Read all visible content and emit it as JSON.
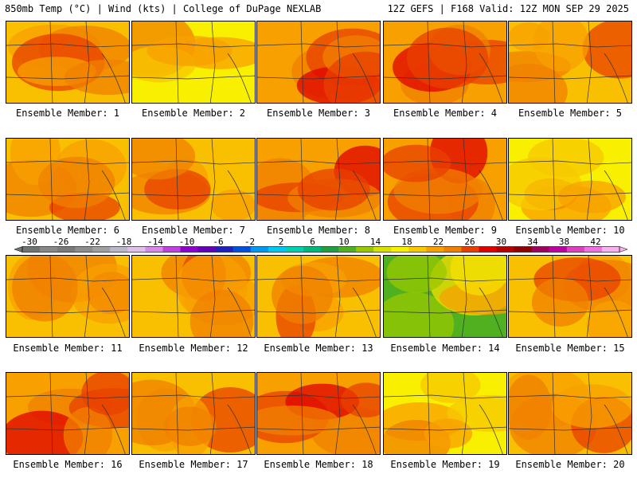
{
  "header": {
    "left": "850mb Temp (°C) | Wind (kts) | College of DuPage NEXLAB",
    "right": "12Z GEFS | F168 Valid: 12Z MON SEP 29 2025"
  },
  "colorbar": {
    "ticks": [
      "-30",
      "-26",
      "-22",
      "-18",
      "-14",
      "-10",
      "-6",
      "-2",
      "2",
      "6",
      "10",
      "14",
      "18",
      "22",
      "26",
      "30",
      "34",
      "38",
      "42"
    ],
    "colors": [
      "#6e7470",
      "#888888",
      "#7a7a7a",
      "#8c8c8c",
      "#a0a0a0",
      "#b8b8c8",
      "#e0c0e8",
      "#d888e8",
      "#c040e0",
      "#9000d0",
      "#6000b8",
      "#2020c0",
      "#0050e0",
      "#0098f0",
      "#00c8f0",
      "#00d0b0",
      "#00b878",
      "#20a040",
      "#50b020",
      "#98c800",
      "#d8e000",
      "#f8f000",
      "#f8c800",
      "#f8a000",
      "#f08000",
      "#e84000",
      "#e00000",
      "#b80000",
      "#900000",
      "#a00060",
      "#c000a0",
      "#e040c0",
      "#f070e0",
      "#f8b0f0"
    ]
  },
  "panels": [
    {
      "label": "Ensemble Member: 1",
      "variant": "warm"
    },
    {
      "label": "Ensemble Member: 2",
      "variant": "mild"
    },
    {
      "label": "Ensemble Member: 3",
      "variant": "hot"
    },
    {
      "label": "Ensemble Member: 4",
      "variant": "hot"
    },
    {
      "label": "Ensemble Member: 5",
      "variant": "warm"
    },
    {
      "label": "Ensemble Member: 6",
      "variant": "warm"
    },
    {
      "label": "Ensemble Member: 7",
      "variant": "warm"
    },
    {
      "label": "Ensemble Member: 8",
      "variant": "hot"
    },
    {
      "label": "Ensemble Member: 9",
      "variant": "hot"
    },
    {
      "label": "Ensemble Member: 10",
      "variant": "mild"
    },
    {
      "label": "Ensemble Member: 11",
      "variant": "warm"
    },
    {
      "label": "Ensemble Member: 12",
      "variant": "warm"
    },
    {
      "label": "Ensemble Member: 13",
      "variant": "warm"
    },
    {
      "label": "Ensemble Member: 14",
      "variant": "cool"
    },
    {
      "label": "Ensemble Member: 15",
      "variant": "warm"
    },
    {
      "label": "Ensemble Member: 16",
      "variant": "hot"
    },
    {
      "label": "Ensemble Member: 17",
      "variant": "warm"
    },
    {
      "label": "Ensemble Member: 18",
      "variant": "hot"
    },
    {
      "label": "Ensemble Member: 19",
      "variant": "mild"
    },
    {
      "label": "Ensemble Member: 20",
      "variant": "warm"
    }
  ]
}
